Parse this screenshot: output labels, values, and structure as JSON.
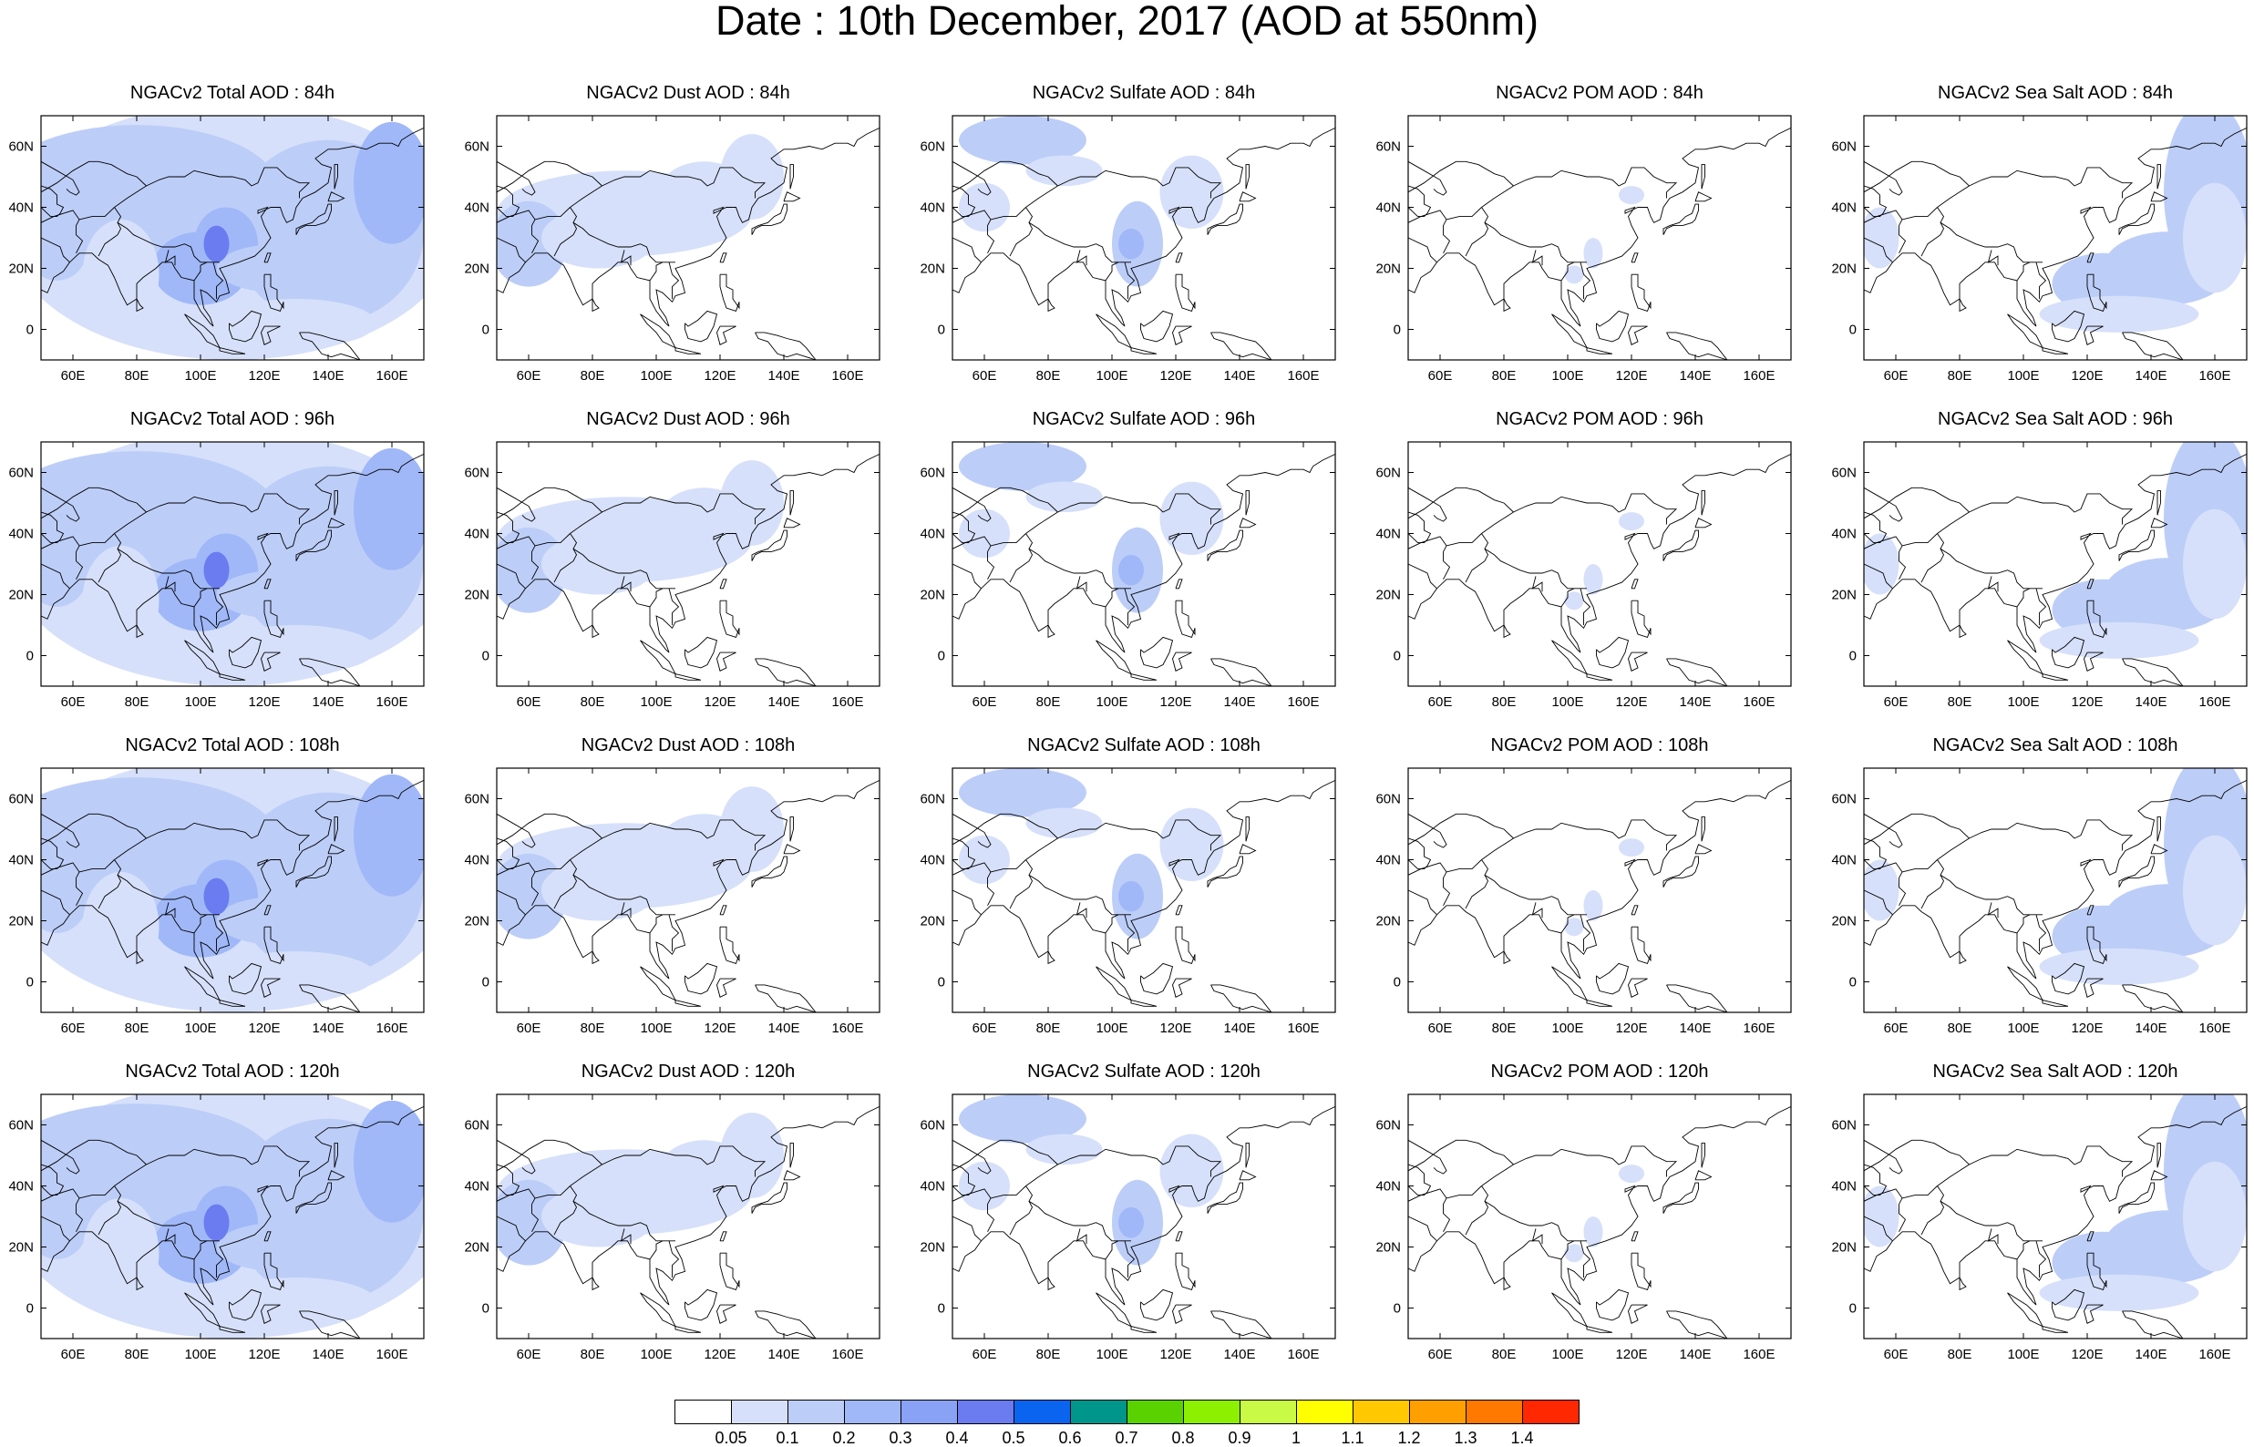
{
  "title": "Date : 10th December, 2017 (AOD at 550nm)",
  "panels": [
    {
      "title": "NGACv2 Total AOD : 84h",
      "species": "total"
    },
    {
      "title": "NGACv2 Dust AOD : 84h",
      "species": "dust"
    },
    {
      "title": "NGACv2 Sulfate AOD : 84h",
      "species": "sulfate"
    },
    {
      "title": "NGACv2 POM AOD : 84h",
      "species": "pom"
    },
    {
      "title": "NGACv2 Sea Salt AOD : 84h",
      "species": "seasalt"
    },
    {
      "title": "NGACv2 Total AOD : 96h",
      "species": "total"
    },
    {
      "title": "NGACv2 Dust AOD : 96h",
      "species": "dust"
    },
    {
      "title": "NGACv2 Sulfate AOD : 96h",
      "species": "sulfate"
    },
    {
      "title": "NGACv2 POM AOD : 96h",
      "species": "pom"
    },
    {
      "title": "NGACv2 Sea Salt AOD : 96h",
      "species": "seasalt"
    },
    {
      "title": "NGACv2 Total AOD : 108h",
      "species": "total"
    },
    {
      "title": "NGACv2 Dust AOD : 108h",
      "species": "dust"
    },
    {
      "title": "NGACv2 Sulfate AOD : 108h",
      "species": "sulfate"
    },
    {
      "title": "NGACv2 POM AOD : 108h",
      "species": "pom"
    },
    {
      "title": "NGACv2 Sea Salt AOD : 108h",
      "species": "seasalt"
    },
    {
      "title": "NGACv2 Total AOD : 120h",
      "species": "total"
    },
    {
      "title": "NGACv2 Dust AOD : 120h",
      "species": "dust"
    },
    {
      "title": "NGACv2 Sulfate AOD : 120h",
      "species": "sulfate"
    },
    {
      "title": "NGACv2 POM AOD : 120h",
      "species": "pom"
    },
    {
      "title": "NGACv2 Sea Salt  AOD : 120h",
      "species": "seasalt"
    }
  ],
  "lon_ticks": [
    "60E",
    "80E",
    "100E",
    "120E",
    "140E",
    "160E"
  ],
  "lat_ticks": [
    "60N",
    "40N",
    "20N",
    "0"
  ],
  "map_extent": {
    "lon": [
      50,
      170
    ],
    "lat": [
      -10,
      70
    ]
  },
  "colorbar": {
    "colors": [
      "#ffffff",
      "#d6e0fa",
      "#bccdf8",
      "#a0b8f8",
      "#8aa2f5",
      "#6a7cf0",
      "#0a64f0",
      "#00968c",
      "#5ad200",
      "#8cf000",
      "#c8fa46",
      "#ffff00",
      "#ffc800",
      "#ffa000",
      "#ff7800",
      "#ff2800"
    ],
    "labels": [
      "0.05",
      "0.1",
      "0.2",
      "0.3",
      "0.4",
      "0.5",
      "0.6",
      "0.7",
      "0.8",
      "0.9",
      "1",
      "1.1",
      "1.2",
      "1.3",
      "1.4"
    ]
  }
}
